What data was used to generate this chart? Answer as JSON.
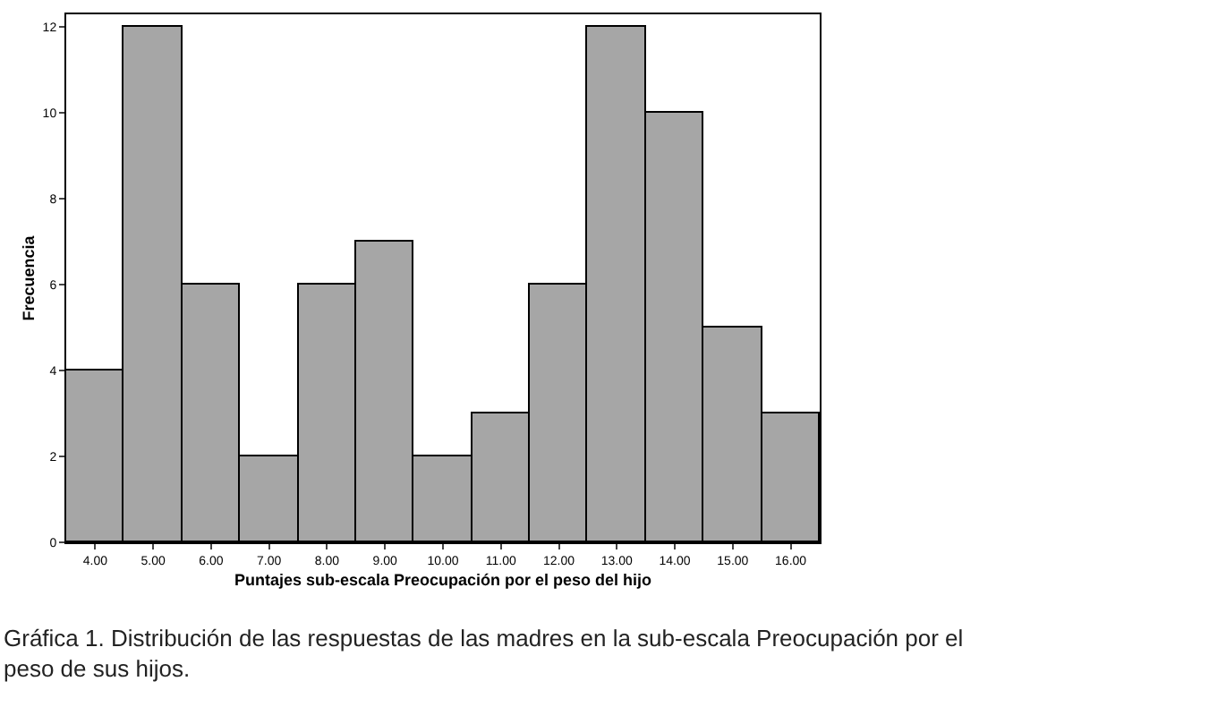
{
  "chart_data": {
    "type": "bar",
    "xlabel": "Puntajes sub-escala Preocupación por el peso del hijo",
    "ylabel": "Frecuencia",
    "categories": [
      "4.00",
      "5.00",
      "6.00",
      "7.00",
      "8.00",
      "9.00",
      "10.00",
      "11.00",
      "12.00",
      "13.00",
      "14.00",
      "15.00",
      "16.00"
    ],
    "values": [
      4,
      12,
      6,
      2,
      6,
      7,
      2,
      3,
      6,
      12,
      10,
      5,
      3
    ],
    "color": "#a6a6a6",
    "ylim": [
      0,
      12.3
    ],
    "yticks": [
      0,
      2,
      4,
      6,
      8,
      10,
      12
    ],
    "annotations": [
      "Gráfica 1. Distribución de las respuestas de las madres en la sub-escala Preocupación por el peso de sus hijos."
    ]
  }
}
